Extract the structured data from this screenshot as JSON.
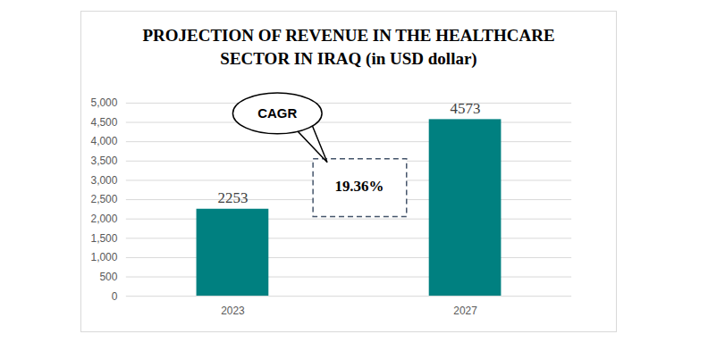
{
  "chart_data": {
    "type": "bar",
    "title": "PROJECTION OF REVENUE IN THE HEALTHCARE\nSECTOR IN IRAQ (in USD dollar)",
    "categories": [
      "2023",
      "2027"
    ],
    "values": [
      2253,
      4573
    ],
    "color": "#008080",
    "ylim": [
      0,
      5000
    ],
    "yticks": [
      0,
      500,
      1000,
      1500,
      2000,
      2500,
      3000,
      3500,
      4000,
      4500,
      5000
    ],
    "grid": true,
    "data_labels": true,
    "annotations": [
      {
        "text": "CAGR"
      },
      {
        "text": "19.36%"
      }
    ]
  }
}
